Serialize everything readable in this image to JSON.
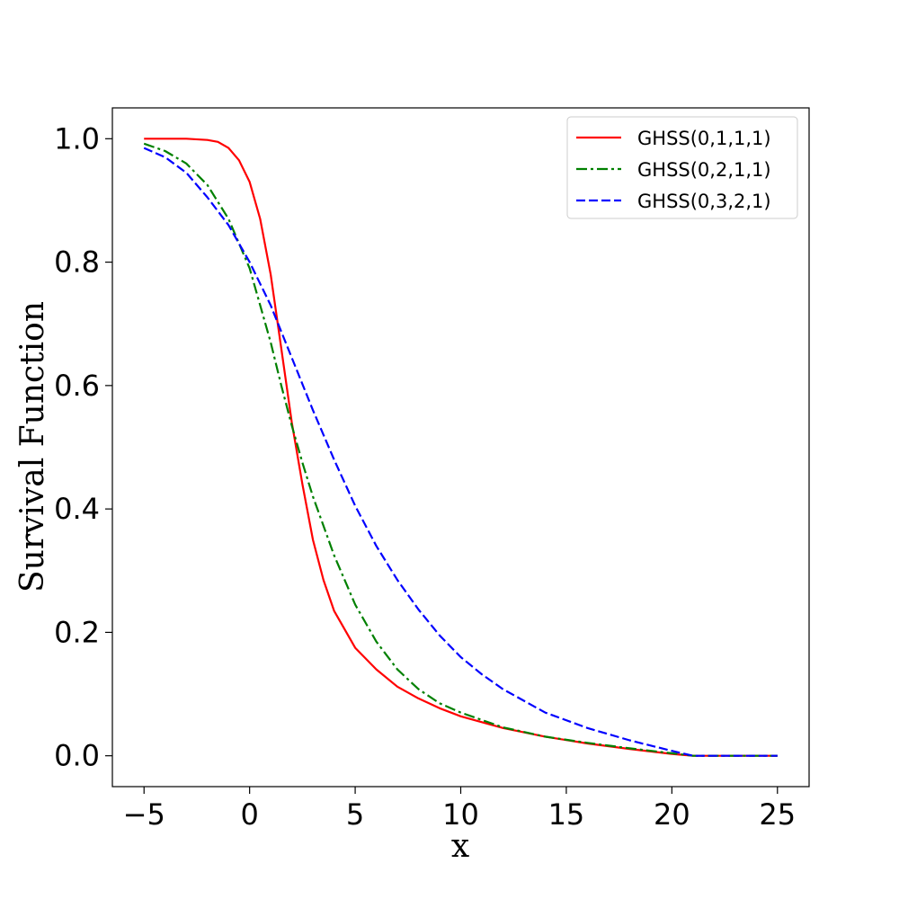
{
  "chart_data": {
    "type": "line",
    "title": "",
    "xlabel": "x",
    "ylabel": "Survival Function",
    "xlim": [
      -6.5,
      26.5
    ],
    "ylim": [
      -0.05,
      1.05
    ],
    "xticks": [
      -5,
      0,
      5,
      10,
      15,
      20,
      25
    ],
    "xtick_labels": [
      "−5",
      "0",
      "5",
      "10",
      "15",
      "20",
      "25"
    ],
    "yticks": [
      0.0,
      0.2,
      0.4,
      0.6,
      0.8,
      1.0
    ],
    "ytick_labels": [
      "0.0",
      "0.2",
      "0.4",
      "0.6",
      "0.8",
      "1.0"
    ],
    "grid": false,
    "legend_position": "top-right",
    "series": [
      {
        "name": "GHSS(0,1,1,1)",
        "color": "#ff0000",
        "style": "solid",
        "x": [
          -5,
          -4,
          -3,
          -2,
          -1.5,
          -1,
          -0.5,
          0,
          0.5,
          1,
          1.5,
          2,
          2.5,
          3,
          3.5,
          4,
          5,
          6,
          7,
          8,
          9,
          10,
          12,
          14,
          16,
          18,
          20,
          21,
          22,
          25
        ],
        "y": [
          1.0,
          1.0,
          1.0,
          0.998,
          0.995,
          0.985,
          0.965,
          0.93,
          0.87,
          0.78,
          0.66,
          0.54,
          0.44,
          0.35,
          0.285,
          0.235,
          0.175,
          0.14,
          0.112,
          0.093,
          0.077,
          0.064,
          0.045,
          0.031,
          0.02,
          0.011,
          0.003,
          0.0,
          0.0,
          0.0
        ]
      },
      {
        "name": "GHSS(0,2,1,1)",
        "color": "#008000",
        "style": "dashdot",
        "x": [
          -5,
          -4,
          -3,
          -2,
          -1,
          0,
          0.5,
          1,
          1.5,
          2,
          2.5,
          3,
          4,
          5,
          6,
          7,
          8,
          9,
          10,
          12,
          14,
          16,
          18,
          20,
          21,
          22,
          25
        ],
        "y": [
          0.992,
          0.98,
          0.96,
          0.925,
          0.87,
          0.79,
          0.73,
          0.67,
          0.6,
          0.535,
          0.475,
          0.42,
          0.325,
          0.245,
          0.185,
          0.14,
          0.108,
          0.085,
          0.07,
          0.046,
          0.031,
          0.021,
          0.012,
          0.004,
          0.0,
          0.0,
          0.0
        ]
      },
      {
        "name": "GHSS(0,3,2,1)",
        "color": "#0000ff",
        "style": "dashed",
        "x": [
          -5,
          -4,
          -3,
          -2,
          -1,
          0,
          1,
          2,
          3,
          4,
          5,
          6,
          7,
          8,
          9,
          10,
          11,
          12,
          14,
          16,
          18,
          20,
          21,
          22,
          25
        ],
        "y": [
          0.985,
          0.97,
          0.945,
          0.905,
          0.86,
          0.8,
          0.73,
          0.645,
          0.56,
          0.48,
          0.405,
          0.34,
          0.285,
          0.237,
          0.195,
          0.16,
          0.132,
          0.108,
          0.07,
          0.045,
          0.025,
          0.008,
          0.0,
          0.0,
          0.0
        ]
      }
    ]
  }
}
